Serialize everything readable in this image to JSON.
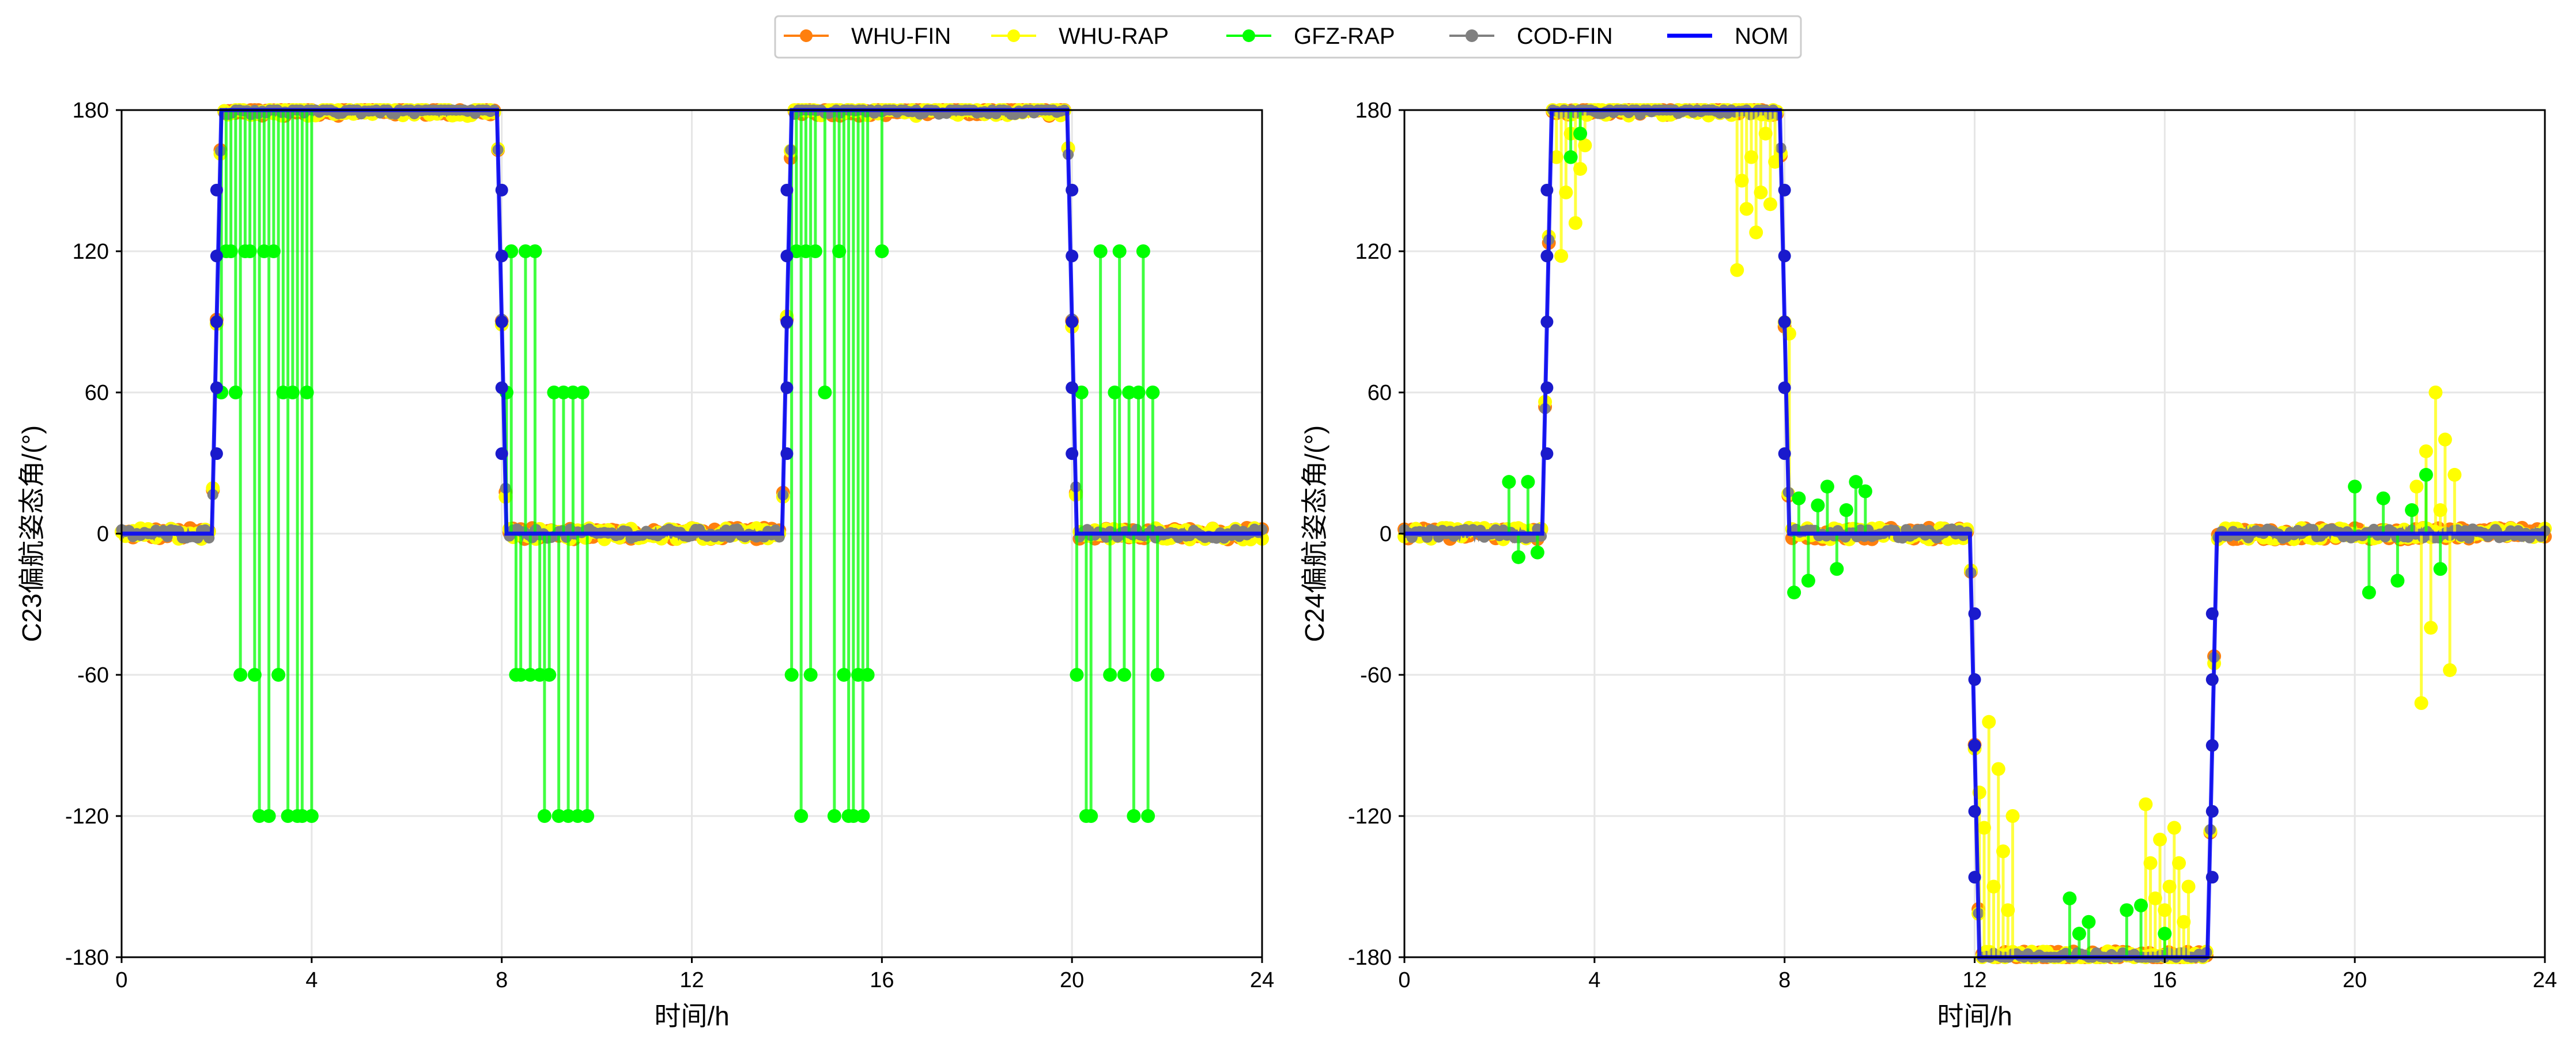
{
  "legend": {
    "items": [
      {
        "name": "WHU-FIN",
        "color": "#ff7f0e",
        "marker": true
      },
      {
        "name": "WHU-RAP",
        "color": "#ffff00",
        "marker": true
      },
      {
        "name": "GFZ-RAP",
        "color": "#00ff00",
        "marker": true
      },
      {
        "name": "COD-FIN",
        "color": "#808080",
        "marker": true
      },
      {
        "name": "NOM",
        "color": "#0000ff",
        "marker": false
      }
    ]
  },
  "chart_data": [
    {
      "type": "line",
      "title": "",
      "xlabel": "时间/h",
      "ylabel": "C23偏航姿态角/(°)",
      "xlim": [
        0,
        24
      ],
      "ylim": [
        -180,
        180
      ],
      "xticks": [
        0,
        4,
        8,
        12,
        16,
        20,
        24
      ],
      "yticks": [
        -180,
        -120,
        -60,
        0,
        60,
        120,
        180
      ],
      "grid": true,
      "series": [
        {
          "name": "NOM",
          "x": [
            0,
            1.9,
            2.0,
            2.1,
            7.9,
            8.0,
            8.1,
            13.9,
            14.0,
            14.1,
            19.9,
            20.0,
            20.1,
            24
          ],
          "y": [
            0,
            0,
            90,
            180,
            180,
            90,
            0,
            0,
            90,
            180,
            180,
            90,
            0,
            0
          ]
        },
        {
          "name": "GFZ-RAP",
          "x": [
            2.1,
            2.2,
            2.3,
            2.4,
            2.5,
            2.6,
            2.7,
            2.8,
            2.9,
            3.0,
            3.1,
            3.2,
            3.3,
            3.4,
            3.5,
            3.6,
            3.7,
            3.8,
            3.9,
            4.0,
            8.1,
            8.2,
            8.3,
            8.4,
            8.5,
            8.6,
            8.7,
            8.8,
            8.9,
            9.0,
            9.1,
            9.2,
            9.3,
            9.4,
            9.5,
            9.6,
            9.7,
            9.8,
            14.1,
            14.2,
            14.3,
            14.4,
            14.5,
            14.6,
            14.8,
            15.0,
            15.1,
            15.2,
            15.3,
            15.4,
            15.5,
            15.6,
            15.7,
            16.0,
            20.1,
            20.2,
            20.3,
            20.4,
            20.6,
            20.8,
            20.9,
            21.0,
            21.1,
            21.2,
            21.3,
            21.4,
            21.5,
            21.6,
            21.7,
            21.8
          ],
          "y": [
            60,
            120,
            120,
            60,
            -60,
            120,
            120,
            -60,
            -120,
            120,
            -120,
            120,
            -60,
            60,
            -120,
            60,
            -120,
            -120,
            60,
            -120,
            60,
            120,
            -60,
            -60,
            120,
            -60,
            120,
            -60,
            -120,
            -60,
            60,
            -120,
            60,
            -120,
            60,
            -120,
            60,
            -120,
            -60,
            120,
            -120,
            120,
            -60,
            120,
            60,
            -120,
            120,
            -60,
            -120,
            -120,
            -60,
            -120,
            -60,
            120,
            -60,
            60,
            -120,
            -120,
            120,
            -60,
            60,
            120,
            -60,
            60,
            -120,
            60,
            120,
            -120,
            60,
            -60
          ]
        }
      ]
    },
    {
      "type": "line",
      "title": "",
      "xlabel": "时间/h",
      "ylabel": "C24偏航姿态角/(°)",
      "xlim": [
        0,
        24
      ],
      "ylim": [
        -180,
        180
      ],
      "xticks": [
        0,
        4,
        8,
        12,
        16,
        20,
        24
      ],
      "yticks": [
        -180,
        -120,
        -60,
        0,
        60,
        120,
        180
      ],
      "grid": true,
      "series": [
        {
          "name": "NOM",
          "x": [
            0,
            2.9,
            3.0,
            3.1,
            7.9,
            8.0,
            8.1,
            11.9,
            12.0,
            12.1,
            16.9,
            17.0,
            17.1,
            24
          ],
          "y": [
            0,
            0,
            90,
            180,
            180,
            90,
            0,
            0,
            -90,
            -180,
            -180,
            -90,
            0,
            0
          ]
        },
        {
          "name": "WHU-RAP",
          "x": [
            3.2,
            3.3,
            3.4,
            3.5,
            3.6,
            3.7,
            3.8,
            7.0,
            7.1,
            7.2,
            7.3,
            7.4,
            7.5,
            7.6,
            7.7,
            7.8,
            8.1,
            12.1,
            12.2,
            12.3,
            12.4,
            12.5,
            12.6,
            12.7,
            12.8,
            15.6,
            15.7,
            15.8,
            15.9,
            16.0,
            16.1,
            16.2,
            16.3,
            16.4,
            16.5,
            21.3,
            21.4,
            21.5,
            21.6,
            21.7,
            21.8,
            21.9,
            22.0,
            22.1
          ],
          "y": [
            160,
            118,
            145,
            170,
            132,
            155,
            165,
            112,
            150,
            138,
            160,
            128,
            145,
            170,
            140,
            158,
            85,
            -110,
            -125,
            -80,
            -150,
            -100,
            -135,
            -160,
            -120,
            -115,
            -140,
            -155,
            -130,
            -160,
            -150,
            -125,
            -140,
            -165,
            -150,
            20,
            -72,
            35,
            -40,
            60,
            10,
            40,
            -58,
            25
          ]
        },
        {
          "name": "GFZ-RAP",
          "x": [
            2.2,
            2.4,
            2.6,
            2.8,
            3.5,
            3.7,
            8.2,
            8.3,
            8.5,
            8.7,
            8.9,
            9.1,
            9.3,
            9.5,
            9.7,
            14.0,
            14.2,
            14.4,
            15.2,
            15.5,
            16.0,
            20.0,
            20.3,
            20.6,
            20.9,
            21.2,
            21.5,
            21.8
          ],
          "y": [
            22,
            -10,
            22,
            -8,
            160,
            170,
            -25,
            15,
            -20,
            12,
            20,
            -15,
            10,
            22,
            18,
            -155,
            -170,
            -165,
            -160,
            -158,
            -170,
            20,
            -25,
            15,
            -20,
            10,
            25,
            -15
          ]
        }
      ]
    }
  ]
}
